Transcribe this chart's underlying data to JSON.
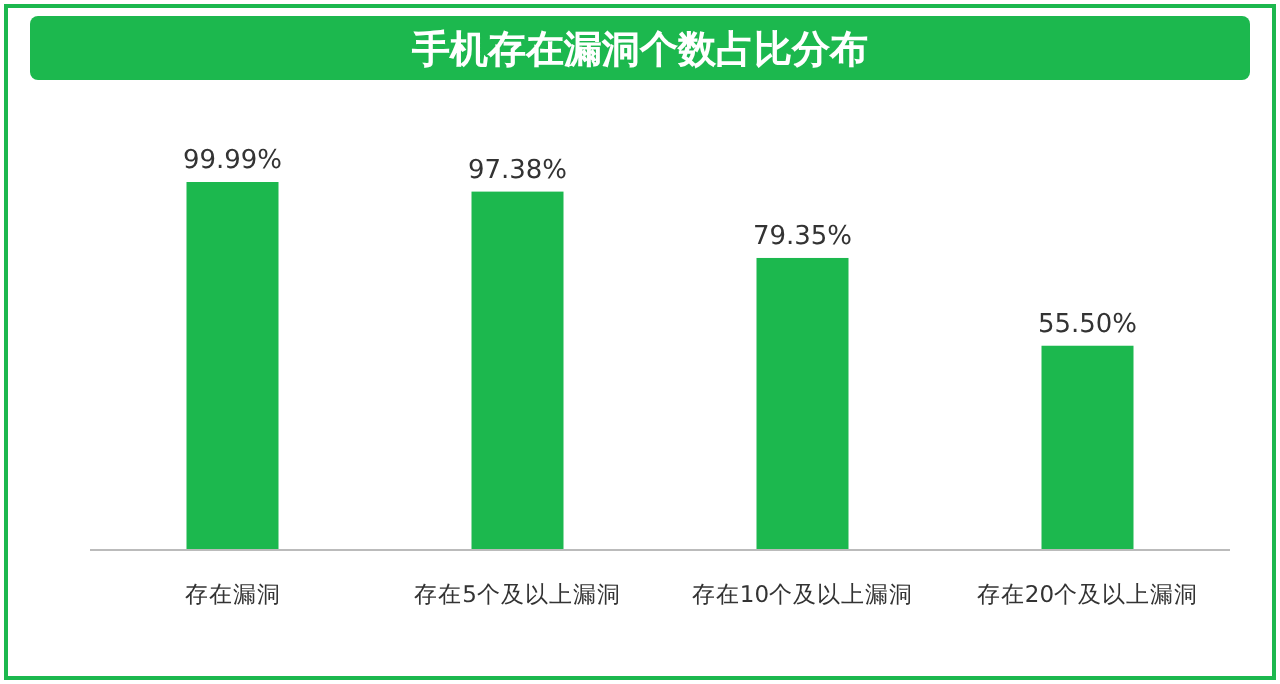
{
  "chart_data": {
    "type": "bar",
    "title": "手机存在漏洞个数占比分布",
    "categories": [
      "存在漏洞",
      "存在5个及以上漏洞",
      "存在10个及以上漏洞",
      "存在20个及以上漏洞"
    ],
    "values": [
      99.99,
      97.38,
      79.35,
      55.5
    ],
    "value_labels": [
      "99.99%",
      "97.38%",
      "79.35%",
      "55.50%"
    ],
    "color": "#1cb84e"
  }
}
